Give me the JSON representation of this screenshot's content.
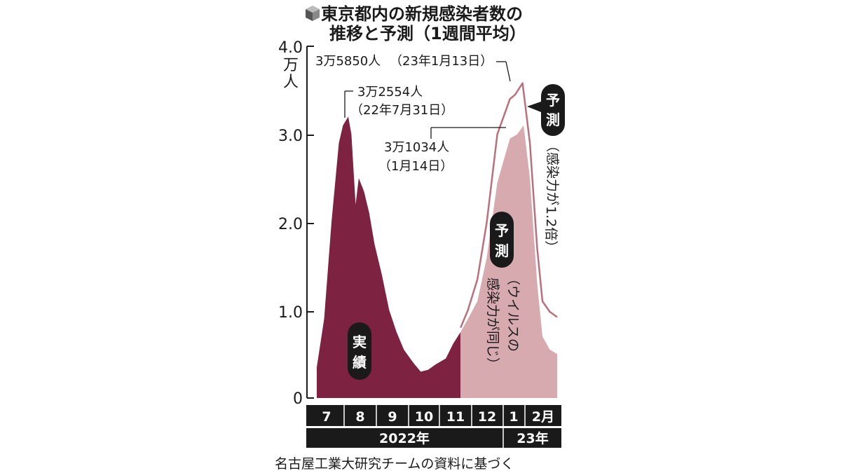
{
  "title": {
    "line1": "東京都内の新規感染者数の",
    "line2": "推移と予測（1週間平均）"
  },
  "source": "名古屋工業大研究チームの資料に基づく",
  "y_unit": [
    "万",
    "人"
  ],
  "months": [
    "7",
    "8",
    "9",
    "10",
    "11",
    "12",
    "1",
    "2月"
  ],
  "years": [
    "2022年",
    "23年"
  ],
  "labels": {
    "actual": [
      "実",
      "績"
    ],
    "forecast_same": [
      "予",
      "測"
    ],
    "forecast_same_note": [
      "（ウイルスの",
      "感染力が同じ）"
    ],
    "forecast_high": [
      "予",
      "測"
    ],
    "forecast_high_note": [
      "（感染力が",
      "1.2倍）"
    ]
  },
  "annotations": {
    "peak_2022": {
      "value": "3万2554人",
      "date": "（22年7月31日）"
    },
    "peak_same": {
      "value": "3万1034人",
      "date": "（1月14日）"
    },
    "peak_high": {
      "value": "3万5850人",
      "date": "（23年1月13日）"
    }
  },
  "colors": {
    "actual": "#7d2240",
    "forecast_same": "#d7aab0",
    "forecast_high": "#b9707c",
    "dark": "#1a1a1a"
  },
  "chart_data": {
    "type": "area",
    "title": "東京都内の新規感染者数の推移と予測（1週間平均）",
    "ylabel": "万人",
    "ylim": [
      0,
      4.0
    ],
    "yticks": [
      "0",
      "1.0",
      "2.0",
      "3.0",
      "4.0"
    ],
    "x_categories": [
      "7",
      "8",
      "9",
      "10",
      "11",
      "12",
      "1",
      "2月"
    ],
    "series": [
      {
        "name": "実績",
        "type": "area",
        "x": [
          "2022-07-01",
          "2022-07-08",
          "2022-07-15",
          "2022-07-22",
          "2022-07-26",
          "2022-07-31",
          "2022-08-03",
          "2022-08-07",
          "2022-08-10",
          "2022-08-15",
          "2022-08-20",
          "2022-08-25",
          "2022-09-01",
          "2022-09-08",
          "2022-09-15",
          "2022-09-22",
          "2022-10-01",
          "2022-10-08",
          "2022-10-15",
          "2022-10-22",
          "2022-11-01",
          "2022-11-08",
          "2022-11-15"
        ],
        "values": [
          0.35,
          0.9,
          2.0,
          2.9,
          3.1,
          3.2,
          3.0,
          2.2,
          2.5,
          2.35,
          2.1,
          1.75,
          1.4,
          1.0,
          0.75,
          0.55,
          0.4,
          0.3,
          0.32,
          0.38,
          0.45,
          0.62,
          0.75
        ]
      },
      {
        "name": "予測（ウイルスの感染力が同じ）",
        "type": "area",
        "x": [
          "2022-11-15",
          "2022-11-22",
          "2022-12-01",
          "2022-12-10",
          "2022-12-20",
          "2023-01-01",
          "2023-01-08",
          "2023-01-14",
          "2023-01-20",
          "2023-01-27",
          "2023-02-01",
          "2023-02-08",
          "2023-02-15"
        ],
        "values": [
          0.75,
          0.9,
          1.1,
          1.6,
          2.45,
          2.95,
          3.0,
          3.1,
          2.5,
          1.3,
          0.7,
          0.55,
          0.5
        ]
      },
      {
        "name": "予測（感染力が1.2倍）",
        "type": "line",
        "x": [
          "2022-11-15",
          "2022-11-22",
          "2022-12-01",
          "2022-12-10",
          "2022-12-20",
          "2023-01-01",
          "2023-01-06",
          "2023-01-13",
          "2023-01-20",
          "2023-01-27",
          "2023-02-01",
          "2023-02-08",
          "2023-02-15"
        ],
        "values": [
          0.8,
          1.0,
          1.35,
          2.0,
          3.0,
          3.4,
          3.45,
          3.58,
          2.9,
          1.7,
          1.1,
          0.98,
          0.92
        ]
      }
    ],
    "annotations": [
      {
        "text": "3万2554人（22年7月31日）",
        "x": "2022-07-31",
        "y": 3.2554
      },
      {
        "text": "3万1034人（1月14日）",
        "x": "2023-01-14",
        "y": 3.1034
      },
      {
        "text": "3万5850人（23年1月13日）",
        "x": "2023-01-13",
        "y": 3.585
      }
    ]
  }
}
